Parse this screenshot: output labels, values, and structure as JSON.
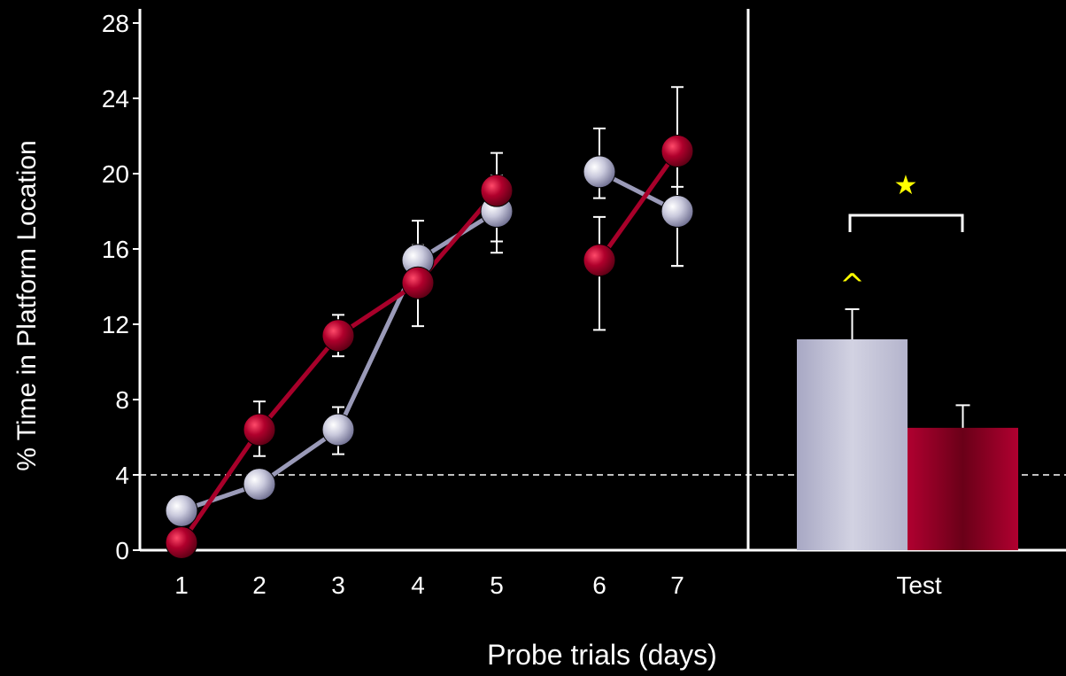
{
  "chart_data": [
    {
      "type": "line",
      "title": "",
      "xlabel": "Probe trials (days)",
      "ylabel": "% Time in Platform Location",
      "ylim": [
        0,
        28
      ],
      "yticks": [
        0,
        4,
        8,
        12,
        16,
        20,
        24,
        28
      ],
      "x": [
        1,
        2,
        3,
        4,
        5,
        6,
        7
      ],
      "reference_line": {
        "y": 4,
        "style": "dashed"
      },
      "grid": false,
      "series": [
        {
          "name": "",
          "color": "#9a9ab8",
          "segments": [
            [
              1,
              2,
              3,
              4,
              5
            ],
            [
              6,
              7
            ]
          ],
          "values": [
            2.1,
            3.5,
            6.4,
            15.4,
            18.0,
            20.1,
            18.0
          ],
          "error_up": [
            0.4,
            0.4,
            1.2,
            2.1,
            1.9,
            2.3,
            1.3
          ],
          "error_down": [
            0.3,
            0.5,
            1.3,
            1.5,
            2.2,
            1.4,
            2.9
          ]
        },
        {
          "name": "",
          "color": "#a8002a",
          "segments": [
            [
              1,
              2,
              3,
              4,
              5
            ],
            [
              6,
              7
            ]
          ],
          "values": [
            0.4,
            6.4,
            11.4,
            14.2,
            19.1,
            15.4,
            21.2
          ],
          "error_up": [
            0.0,
            1.5,
            1.1,
            2.0,
            2.0,
            2.3,
            3.4
          ],
          "error_down": [
            0.0,
            1.4,
            1.1,
            2.3,
            2.7,
            3.7,
            6.1
          ]
        }
      ]
    },
    {
      "type": "bar",
      "categories": [
        "Test"
      ],
      "ylim": [
        0,
        28
      ],
      "reference_line": {
        "y": 4,
        "style": "dashed"
      },
      "series": [
        {
          "name": "",
          "values": [
            11.2
          ],
          "error": [
            1.6
          ],
          "color": "#c4c4d8"
        },
        {
          "name": "",
          "values": [
            6.5
          ],
          "error": [
            1.2
          ],
          "color": "#a8002a"
        }
      ],
      "annotations": [
        {
          "text": "^",
          "target": "series 1 bar",
          "color": "#ffff00"
        },
        {
          "text": "★",
          "target": "significance bracket between bars",
          "color": "#ffff00"
        }
      ]
    }
  ]
}
